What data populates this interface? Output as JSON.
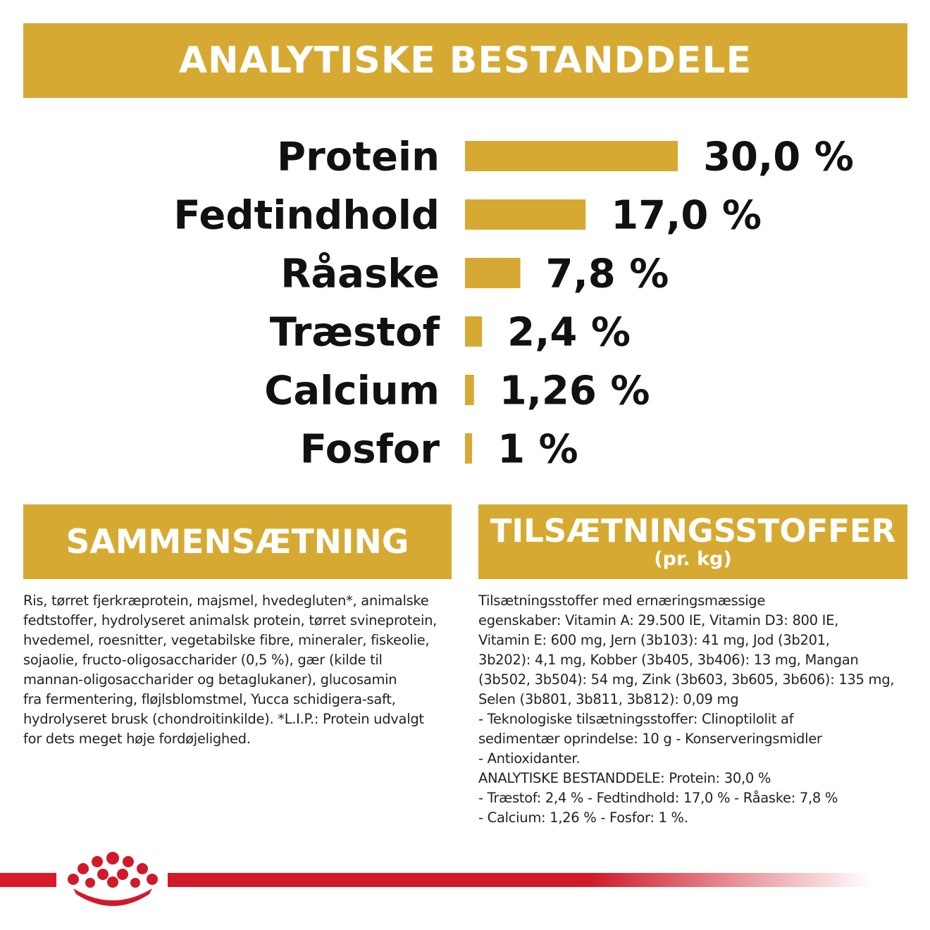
{
  "headers": {
    "main": "ANALYTISKE BESTANDDELE",
    "composition": "SAMMENSÆTNING",
    "additives": "TILSÆTNINGSSTOFFER",
    "additives_sub": "(pr. kg)"
  },
  "chart_data": {
    "type": "bar",
    "orientation": "horizontal",
    "title": "ANALYTISKE BESTANDDELE",
    "bar_color": "#d6aa32",
    "categories": [
      "Protein",
      "Fedtindhold",
      "Råaske",
      "Træstof",
      "Calcium",
      "Fosfor"
    ],
    "values": [
      30.0,
      17.0,
      7.8,
      2.4,
      1.26,
      1
    ],
    "labels": [
      "30,0 %",
      "17,0 %",
      "7,8 %",
      "2,4 %",
      "1,26 %",
      "1 %"
    ],
    "unit": "%"
  },
  "composition_lines": [
    "Ris, tørret fjerkræprotein, majsmel, hvedegluten*, animalske",
    "fedtstoffer, hydrolyseret animalsk protein, tørret svineprotein,",
    "hvedemel, roesnitter, vegetabilske fibre, mineraler, fiskeolie,",
    "sojaolie, fructo-oligosaccharider (0,5 %), gær (kilde til",
    "mannan-oligosaccharider og betaglukaner), glucosamin",
    "fra fermentering, fløjlsblomstmel, Yucca schidigera-saft,",
    "hydrolyseret brusk (chondroitinkilde). *L.I.P.: Protein udvalgt",
    "for dets meget høje fordøjelighed."
  ],
  "additives_lines": [
    "Tilsætningsstoffer med ernæringsmæssige",
    "egenskaber: Vitamin A: 29.500 IE, Vitamin D3: 800 IE,",
    "Vitamin E: 600 mg, Jern (3b103): 41 mg, Jod (3b201,",
    "3b202): 4,1 mg, Kobber (3b405, 3b406): 13 mg, Mangan",
    "(3b502, 3b504): 54 mg, Zink (3b603, 3b605, 3b606): 135 mg,",
    "Selen (3b801, 3b811, 3b812): 0,09 mg",
    "- Teknologiske tilsætningsstoffer: Clinoptilolit af",
    "sedimentær oprindelse: 10 g - Konserveringsmidler",
    "- Antioxidanter.",
    "ANALYTISKE BESTANDDELE: Protein: 30,0 %",
    "- Træstof: 2,4 % - Fedtindhold: 17,0 % - Råaske: 7,8 %",
    "- Calcium: 1,26 % - Fosfor: 1 %."
  ],
  "colors": {
    "gold": "#d6aa32",
    "brand_red": "#d01a2a"
  },
  "icons": {
    "logo": "royal-canin-crown-icon"
  }
}
